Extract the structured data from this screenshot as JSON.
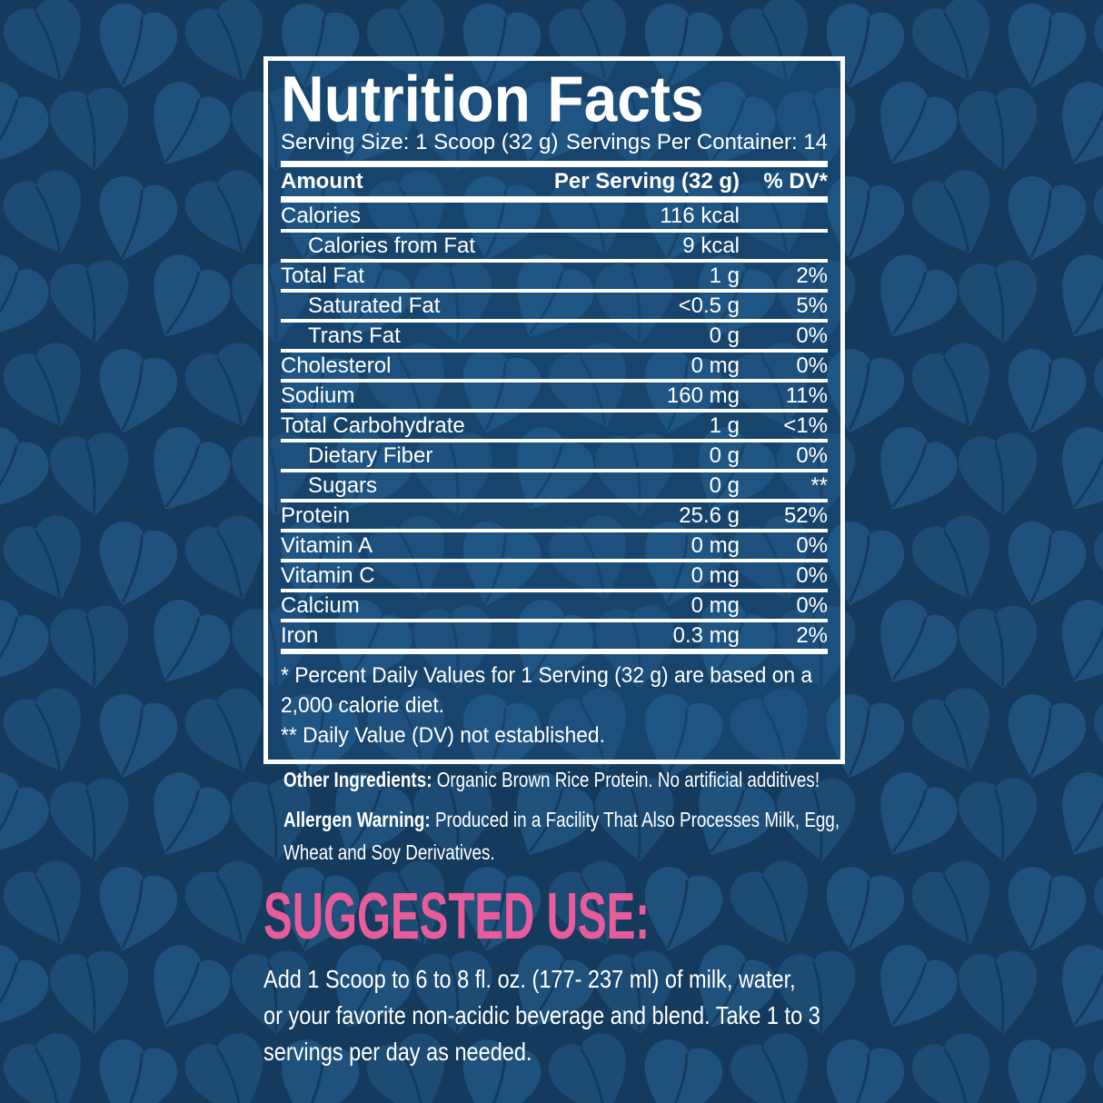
{
  "colors": {
    "background": "#143a5d",
    "leaf": "#1c4b74",
    "leaf_alt": "#1e527d",
    "panel_border": "#ffffff",
    "text": "#ffffff",
    "accent_pink": "#e95c9b"
  },
  "label": {
    "title": "Nutrition Facts",
    "serving_size": "Serving Size: 1 Scoop (32 g)",
    "servings_per_container": "Servings Per Container: 14",
    "header": {
      "amount": "Amount",
      "per_serving": "Per Serving (32 g)",
      "dv": "% DV*"
    },
    "rows": [
      {
        "name": "Calories",
        "value": "116 kcal",
        "dv": "",
        "indent": false
      },
      {
        "name": "Calories from Fat",
        "value": "9 kcal",
        "dv": "",
        "indent": true
      },
      {
        "name": "Total Fat",
        "value": "1 g",
        "dv": "2%",
        "indent": false
      },
      {
        "name": "Saturated Fat",
        "value": "<0.5 g",
        "dv": "5%",
        "indent": true
      },
      {
        "name": "Trans Fat",
        "value": "0 g",
        "dv": "0%",
        "indent": true
      },
      {
        "name": "Cholesterol",
        "value": "0 mg",
        "dv": "0%",
        "indent": false
      },
      {
        "name": "Sodium",
        "value": "160 mg",
        "dv": "11%",
        "indent": false
      },
      {
        "name": "Total Carbohydrate",
        "value": "1 g",
        "dv": "<1%",
        "indent": false
      },
      {
        "name": "Dietary Fiber",
        "value": "0 g",
        "dv": "0%",
        "indent": true
      },
      {
        "name": "Sugars",
        "value": "0 g",
        "dv": "**",
        "indent": true
      },
      {
        "name": "Protein",
        "value": "25.6 g",
        "dv": "52%",
        "indent": false
      },
      {
        "name": "Vitamin A",
        "value": "0 mg",
        "dv": "0%",
        "indent": false
      },
      {
        "name": "Vitamin C",
        "value": "0 mg",
        "dv": "0%",
        "indent": false
      },
      {
        "name": "Calcium",
        "value": "0 mg",
        "dv": "0%",
        "indent": false
      },
      {
        "name": "Iron",
        "value": "0.3 mg",
        "dv": "2%",
        "indent": false
      }
    ],
    "footnotes": [
      "* Percent Daily Values for 1 Serving (32 g) are based on a 2,000 calorie diet.",
      "** Daily Value (DV) not established."
    ]
  },
  "details": {
    "other_ingredients_label": "Other Ingredients:",
    "other_ingredients_text": "Organic Brown Rice Protein. No artificial additives!",
    "allergen_label": "Allergen Warning:",
    "allergen_text": "Produced in a Facility That Also Processes Milk, Egg, Wheat and Soy Derivatives."
  },
  "suggested_use": {
    "heading": "SUGGESTED USE:",
    "body_lines": [
      "Add 1 Scoop to 6 to 8 fl. oz. (177- 237 ml) of milk, water,",
      "or your favorite non-acidic beverage and blend. Take 1 to 3",
      "servings per day as needed."
    ]
  }
}
